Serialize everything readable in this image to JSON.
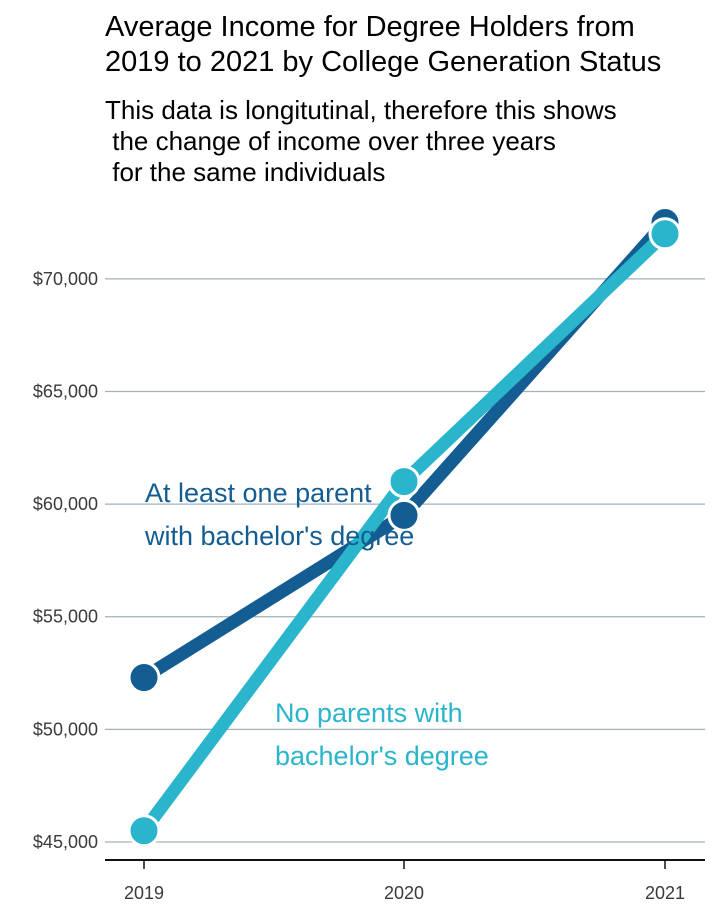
{
  "chart_data": {
    "type": "line",
    "title": "Average Income for Degree Holders from\n2019 to 2021 by College Generation Status",
    "subtitle": "This data is longitutinal, therefore this shows\n the change of income over three years\n for the same individuals",
    "x": [
      2019,
      2020,
      2021
    ],
    "x_tick_labels": [
      "2019",
      "2020",
      "2021"
    ],
    "y_tick_labels": [
      "$45,000",
      "$50,000",
      "$55,000",
      "$60,000",
      "$65,000",
      "$70,000"
    ],
    "y_ticks": [
      45000,
      50000,
      55000,
      60000,
      65000,
      70000
    ],
    "ylim": [
      44200,
      73500
    ],
    "grid": "horizontal",
    "series": [
      {
        "name_lines": [
          "At least one parent",
          "with bachelor's degree"
        ],
        "values": [
          52300,
          59500,
          72500
        ],
        "color": "#145d92"
      },
      {
        "name_lines": [
          "No parents with",
          "bachelor's degree"
        ],
        "values": [
          45500,
          61000,
          72000
        ],
        "color": "#2ab5cc"
      }
    ]
  }
}
